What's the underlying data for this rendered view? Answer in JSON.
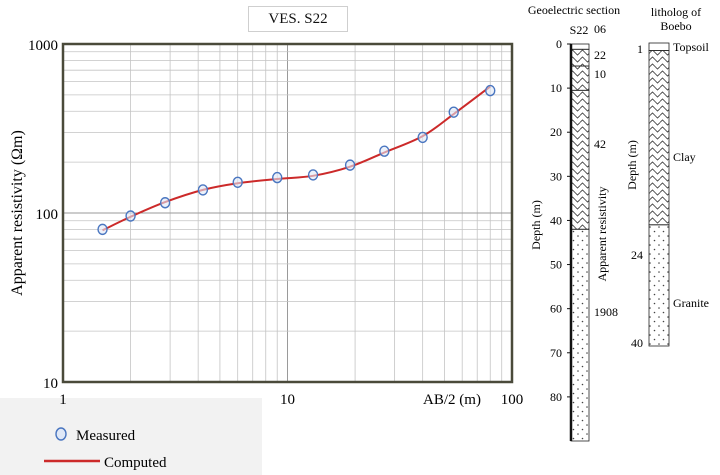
{
  "chart_data": [
    {
      "type": "line",
      "title": "VES. S22",
      "xlabel": "AB/2 (m)",
      "ylabel": "Apparent resistivity (Ωm)",
      "x_scale": "log",
      "y_scale": "log",
      "xlim": [
        1,
        100
      ],
      "ylim": [
        10,
        1000
      ],
      "x_tick_labels": [
        "1",
        "10",
        "100"
      ],
      "y_tick_labels": [
        "10",
        "100",
        "1000"
      ],
      "grid": true,
      "legend": {
        "placement": "bottom-left",
        "entries": [
          "Measured",
          "Computed"
        ]
      },
      "series": [
        {
          "name": "Measured",
          "style": "circle-marker",
          "color": "#4a76c0",
          "x": [
            1.5,
            2.0,
            2.85,
            4.2,
            6.0,
            9.0,
            13.0,
            19.0,
            27.0,
            40.0,
            55.0,
            80.0
          ],
          "y": [
            80,
            96,
            115,
            137,
            152,
            162,
            168,
            192,
            232,
            280,
            395,
            530
          ]
        },
        {
          "name": "Computed",
          "style": "line",
          "color": "#cc2a2a",
          "x": [
            1.5,
            2.0,
            2.85,
            4.2,
            6.0,
            9.0,
            13.0,
            19.0,
            27.0,
            40.0,
            55.0,
            80.0
          ],
          "y": [
            79,
            95,
            116,
            137,
            150,
            159,
            166,
            188,
            228,
            285,
            385,
            560
          ]
        }
      ]
    },
    {
      "type": "column",
      "title": "Geoelectric section",
      "subtitle": "S22",
      "ylabel": "Depth (m)",
      "side_label": "Apparent resistivity",
      "ylim": [
        0,
        90
      ],
      "y_ticks": [
        0,
        10,
        20,
        30,
        40,
        50,
        60,
        70,
        80
      ],
      "layers": [
        {
          "top": 0,
          "bottom": 1.2,
          "resistivity": "06",
          "pattern": "blank"
        },
        {
          "top": 1.2,
          "bottom": 5,
          "resistivity": "22",
          "pattern": "wavy"
        },
        {
          "top": 5,
          "bottom": 10.5,
          "resistivity": "10",
          "pattern": "wavy"
        },
        {
          "top": 10.5,
          "bottom": 42,
          "resistivity": "42",
          "pattern": "wavy"
        },
        {
          "top": 42,
          "bottom": 90,
          "resistivity": "1908",
          "pattern": "dotted"
        }
      ]
    },
    {
      "type": "column",
      "title": "litholog of Boebo",
      "ylabel": "Depth (m)",
      "depth_labels": [
        "1",
        "24",
        "40"
      ],
      "layers": [
        {
          "top": 0,
          "bottom": 1,
          "name": "Topsoil",
          "pattern": "blank"
        },
        {
          "top": 1,
          "bottom": 24,
          "name": "Clay",
          "pattern": "wavy"
        },
        {
          "top": 24,
          "bottom": 40,
          "name": "Granite",
          "pattern": "dotted"
        }
      ]
    }
  ]
}
